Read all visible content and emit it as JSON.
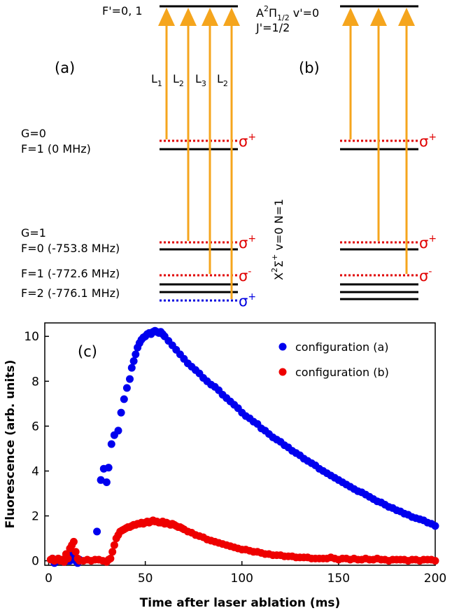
{
  "diagram": {
    "panel_a_label": "(a)",
    "panel_b_label": "(b)",
    "upper_state": {
      "fprime": "F'=0, 1",
      "name_A": "A",
      "name_2": "2",
      "name_Pi": "Π",
      "name_sub": "1/2",
      "name_v": " v'=0",
      "jprime": "J'=1/2"
    },
    "lasers": [
      {
        "main": "L",
        "sub": "1"
      },
      {
        "main": "L",
        "sub": "2"
      },
      {
        "main": "L",
        "sub": "3"
      },
      {
        "main": "L",
        "sub": "2"
      }
    ],
    "ground_levels": {
      "g0": "G=0",
      "f1_0": "F=1 (0 MHz)",
      "g1": "G=1",
      "f0": "F=0 (-753.8 MHz)",
      "f1": "F=1 (-772.6 MHz)",
      "f2": "F=2 (-776.1 MHz)"
    },
    "polarizations": {
      "sigma": "σ",
      "plus": "+",
      "minus": "-"
    },
    "ground_state_label": {
      "X": "X",
      "sup2": "2",
      "Sigma": "Σ",
      "supplus": "+",
      "rest": " v=0 N=1"
    },
    "colors": {
      "laser": "#f5a51d",
      "red_level": "#e00000",
      "blue_level": "#0000e0",
      "level": "#000000"
    }
  },
  "chart_panel_label": "(c)",
  "chart_data": {
    "type": "scatter",
    "xlabel": "Time after laser ablation (ms)",
    "ylabel": "Fluorescence (arb. units)",
    "xlim": [
      -2,
      200
    ],
    "ylim": [
      -0.2,
      10.6
    ],
    "xticks": [
      0,
      50,
      100,
      150,
      200
    ],
    "yticks": [
      0,
      2,
      4,
      6,
      8,
      10
    ],
    "grid": false,
    "legend_position": "top-right",
    "series": [
      {
        "name": "configuration (a)",
        "color": "#0000ee",
        "x": [
          2,
          3,
          4,
          5,
          6,
          7,
          8,
          9,
          10,
          11,
          12,
          13,
          14,
          15,
          16,
          25,
          27,
          28.5,
          30,
          31,
          32.5,
          34,
          36,
          37.5,
          39,
          40.5,
          42,
          43,
          44,
          45,
          46,
          47,
          48,
          49,
          50,
          51,
          52,
          53,
          54,
          55,
          56,
          57,
          58,
          59,
          60,
          62,
          64,
          66,
          68,
          70,
          72,
          74,
          76,
          78,
          80,
          82,
          84,
          86,
          88,
          90,
          92,
          94,
          96,
          98,
          100,
          102,
          104,
          106,
          108,
          110,
          112,
          114,
          116,
          118,
          120,
          122,
          124,
          126,
          128,
          130,
          132,
          134,
          136,
          138,
          140,
          142,
          144,
          146,
          148,
          150,
          152,
          154,
          156,
          158,
          160,
          162,
          164,
          166,
          168,
          170,
          172,
          174,
          176,
          178,
          180,
          182,
          184,
          186,
          188,
          190,
          192,
          194,
          196,
          198,
          200
        ],
        "y": [
          0.1,
          -0.1,
          0.05,
          0.0,
          0.0,
          0.05,
          -0.05,
          0.1,
          0.0,
          0.0,
          0.3,
          0.1,
          0.0,
          -0.1,
          0.05,
          1.3,
          3.6,
          4.1,
          3.5,
          4.15,
          5.2,
          5.6,
          5.8,
          6.6,
          7.2,
          7.7,
          8.1,
          8.6,
          8.9,
          9.2,
          9.5,
          9.7,
          9.85,
          9.95,
          10.0,
          10.1,
          10.15,
          10.1,
          10.2,
          10.25,
          10.2,
          10.15,
          10.2,
          10.1,
          10.0,
          9.8,
          9.6,
          9.4,
          9.2,
          9.0,
          8.8,
          8.65,
          8.5,
          8.35,
          8.15,
          8.0,
          7.85,
          7.75,
          7.6,
          7.4,
          7.25,
          7.1,
          6.95,
          6.8,
          6.6,
          6.45,
          6.35,
          6.2,
          6.1,
          5.9,
          5.8,
          5.65,
          5.5,
          5.4,
          5.3,
          5.15,
          5.05,
          4.9,
          4.8,
          4.7,
          4.55,
          4.45,
          4.35,
          4.25,
          4.1,
          4.0,
          3.9,
          3.8,
          3.7,
          3.6,
          3.5,
          3.4,
          3.3,
          3.2,
          3.1,
          3.05,
          2.95,
          2.85,
          2.75,
          2.65,
          2.6,
          2.5,
          2.4,
          2.35,
          2.25,
          2.2,
          2.1,
          2.05,
          1.95,
          1.9,
          1.85,
          1.8,
          1.7,
          1.65,
          1.55
        ]
      },
      {
        "name": "configuration (b)",
        "color": "#ee0000",
        "x": [
          1,
          2,
          3,
          4,
          5,
          6,
          7,
          8,
          9,
          10,
          11,
          12,
          13,
          14,
          15,
          16,
          18,
          20,
          22,
          24,
          26,
          28,
          30,
          31,
          32,
          33,
          34,
          35,
          36,
          37,
          38,
          39,
          40,
          41,
          42,
          43,
          44,
          45,
          46,
          47,
          48,
          49,
          50,
          51,
          52,
          53,
          54,
          55,
          56,
          57,
          58,
          59,
          60,
          61,
          62,
          63,
          64,
          65,
          66,
          67,
          68,
          69,
          70,
          72,
          74,
          76,
          78,
          80,
          82,
          84,
          86,
          88,
          90,
          92,
          94,
          96,
          98,
          100,
          102,
          104,
          106,
          108,
          110,
          112,
          114,
          116,
          118,
          120,
          122,
          124,
          126,
          128,
          130,
          132,
          134,
          136,
          138,
          140,
          142,
          144,
          146,
          148,
          150,
          152,
          154,
          156,
          158,
          160,
          162,
          164,
          166,
          168,
          170,
          172,
          174,
          176,
          178,
          180,
          182,
          184,
          186,
          188,
          190,
          192,
          194,
          196,
          198,
          200
        ],
        "y": [
          0.05,
          0.1,
          0.0,
          0.05,
          0.1,
          0.0,
          0.05,
          -0.05,
          0.3,
          0.1,
          0.55,
          0.7,
          0.85,
          0.4,
          0.1,
          0.0,
          0.0,
          0.05,
          0.0,
          0.05,
          0.05,
          0.0,
          -0.05,
          0.05,
          0.1,
          0.4,
          0.7,
          1.0,
          1.15,
          1.3,
          1.35,
          1.4,
          1.45,
          1.5,
          1.5,
          1.55,
          1.6,
          1.6,
          1.65,
          1.65,
          1.7,
          1.65,
          1.7,
          1.75,
          1.7,
          1.75,
          1.8,
          1.75,
          1.75,
          1.7,
          1.7,
          1.75,
          1.65,
          1.7,
          1.65,
          1.6,
          1.65,
          1.6,
          1.55,
          1.5,
          1.5,
          1.45,
          1.4,
          1.3,
          1.25,
          1.15,
          1.1,
          1.05,
          0.95,
          0.9,
          0.85,
          0.8,
          0.75,
          0.7,
          0.65,
          0.6,
          0.55,
          0.5,
          0.5,
          0.45,
          0.4,
          0.4,
          0.35,
          0.3,
          0.3,
          0.25,
          0.25,
          0.25,
          0.2,
          0.2,
          0.2,
          0.15,
          0.15,
          0.15,
          0.15,
          0.1,
          0.1,
          0.1,
          0.1,
          0.1,
          0.15,
          0.1,
          0.05,
          0.1,
          0.1,
          0.05,
          0.1,
          0.05,
          0.05,
          0.1,
          0.05,
          0.05,
          0.1,
          0.05,
          0.05,
          0.0,
          0.05,
          0.05,
          0.05,
          0.05,
          0.0,
          0.05,
          0.05,
          0.0,
          0.05,
          0.05,
          0.05,
          0.0
        ]
      }
    ]
  }
}
